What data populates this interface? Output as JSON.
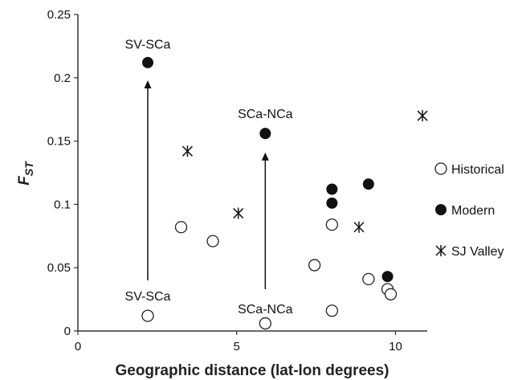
{
  "chart_data": {
    "type": "scatter",
    "title": "",
    "xlabel": "Geographic distance (lat-lon degrees)",
    "ylabel_main": "F",
    "ylabel_sub": "ST",
    "xlim": [
      0,
      11
    ],
    "ylim": [
      0,
      0.25
    ],
    "x_ticks": [
      0,
      5,
      10
    ],
    "y_ticks": [
      0,
      0.05,
      0.1,
      0.15,
      0.2,
      0.25
    ],
    "x_tick_labels": [
      "0",
      "5",
      "10"
    ],
    "y_tick_labels": [
      "0",
      "0.05",
      "0.1",
      "0.15",
      "0.2",
      "0.25"
    ],
    "grid": false,
    "legend_position": "right",
    "series": [
      {
        "name": "Historical",
        "marker": "open-circle",
        "points": [
          {
            "x": 2.2,
            "y": 0.012
          },
          {
            "x": 3.25,
            "y": 0.082
          },
          {
            "x": 4.25,
            "y": 0.071
          },
          {
            "x": 5.9,
            "y": 0.006
          },
          {
            "x": 7.45,
            "y": 0.052
          },
          {
            "x": 8.0,
            "y": 0.084
          },
          {
            "x": 8.0,
            "y": 0.016
          },
          {
            "x": 9.15,
            "y": 0.041
          },
          {
            "x": 9.75,
            "y": 0.033
          },
          {
            "x": 9.85,
            "y": 0.029
          }
        ]
      },
      {
        "name": "Modern",
        "marker": "filled-circle",
        "points": [
          {
            "x": 2.2,
            "y": 0.212
          },
          {
            "x": 5.9,
            "y": 0.156
          },
          {
            "x": 8.0,
            "y": 0.112
          },
          {
            "x": 8.0,
            "y": 0.101
          },
          {
            "x": 9.15,
            "y": 0.116
          },
          {
            "x": 9.75,
            "y": 0.043
          }
        ]
      },
      {
        "name": "SJ Valley",
        "marker": "star",
        "points": [
          {
            "x": 3.45,
            "y": 0.142
          },
          {
            "x": 5.05,
            "y": 0.093
          },
          {
            "x": 8.85,
            "y": 0.082
          },
          {
            "x": 10.85,
            "y": 0.17
          }
        ]
      }
    ],
    "arrows": [
      {
        "x": 2.2,
        "y_from": 0.04,
        "y_to": 0.198
      },
      {
        "x": 5.9,
        "y_from": 0.033,
        "y_to": 0.141
      }
    ],
    "annotations": [
      {
        "text": "SV-SCa",
        "x": 2.2,
        "y": 0.223
      },
      {
        "text": "SCa-NCa",
        "x": 5.9,
        "y": 0.168
      },
      {
        "text": "SV-SCa",
        "x": 2.2,
        "y": 0.024
      },
      {
        "text": "SCa-NCa",
        "x": 5.9,
        "y": 0.014
      }
    ]
  }
}
